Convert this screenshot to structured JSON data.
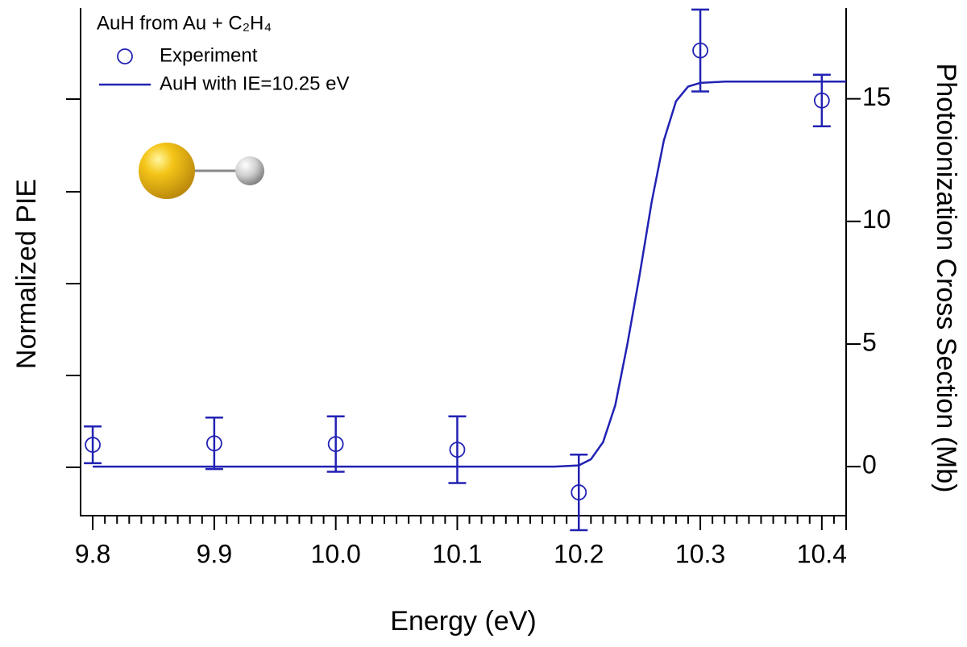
{
  "chart_data": {
    "type": "scatter",
    "title": "AuH from Au + C₂H₄",
    "xlabel": "Energy (eV)",
    "ylabel": "Normalized PIE",
    "y2label": "Photoionization Cross Section (Mb)",
    "xlim": [
      9.79,
      10.42
    ],
    "xticks": [
      9.8,
      9.9,
      {
        "value": 10,
        "label": "10.0"
      },
      10.1,
      10.2,
      10.3,
      10.4
    ],
    "xminorticks": [
      9.81,
      9.82,
      9.83,
      9.84,
      9.85,
      9.86,
      9.87,
      9.88,
      9.89,
      9.91,
      9.92,
      9.93,
      9.94,
      9.95,
      9.96,
      9.97,
      9.98,
      9.99,
      10.01,
      10.02,
      10.03,
      10.04,
      10.05,
      10.06,
      10.07,
      10.08,
      10.09,
      10.11,
      10.12,
      10.13,
      10.14,
      10.15,
      10.16,
      10.17,
      10.18,
      10.19,
      10.21,
      10.22,
      10.23,
      10.24,
      10.25,
      10.26,
      10.27,
      10.28,
      10.29,
      10.31,
      10.32,
      10.33,
      10.34,
      10.35,
      10.36,
      10.37,
      10.38,
      10.39,
      10.41
    ],
    "ylim": [
      -2,
      18.7
    ],
    "yticks": [
      0,
      5,
      10,
      15
    ],
    "series": [
      {
        "name": "Experiment",
        "type": "scatter",
        "color": "#2222b4",
        "x": [
          9.8,
          9.9,
          10.0,
          10.1,
          10.2,
          10.3,
          10.4
        ],
        "values": [
          0.89,
          0.95,
          0.92,
          0.69,
          -1.05,
          16.97,
          14.93
        ],
        "errors": [
          0.75,
          1.05,
          1.13,
          1.36,
          1.54,
          1.67,
          1.05
        ]
      },
      {
        "name": "AuH with IE=10.25 eV",
        "type": "line",
        "color": "#2222b4",
        "x": [
          9.8,
          10.0,
          10.18,
          10.2,
          10.21,
          10.22,
          10.23,
          10.24,
          10.25,
          10.26,
          10.27,
          10.28,
          10.29,
          10.3,
          10.32,
          10.42
        ],
        "values": [
          0,
          0,
          0,
          0.05,
          0.3,
          1.0,
          2.5,
          5.0,
          7.8,
          10.8,
          13.3,
          14.9,
          15.5,
          15.65,
          15.7,
          15.7
        ]
      }
    ]
  }
}
